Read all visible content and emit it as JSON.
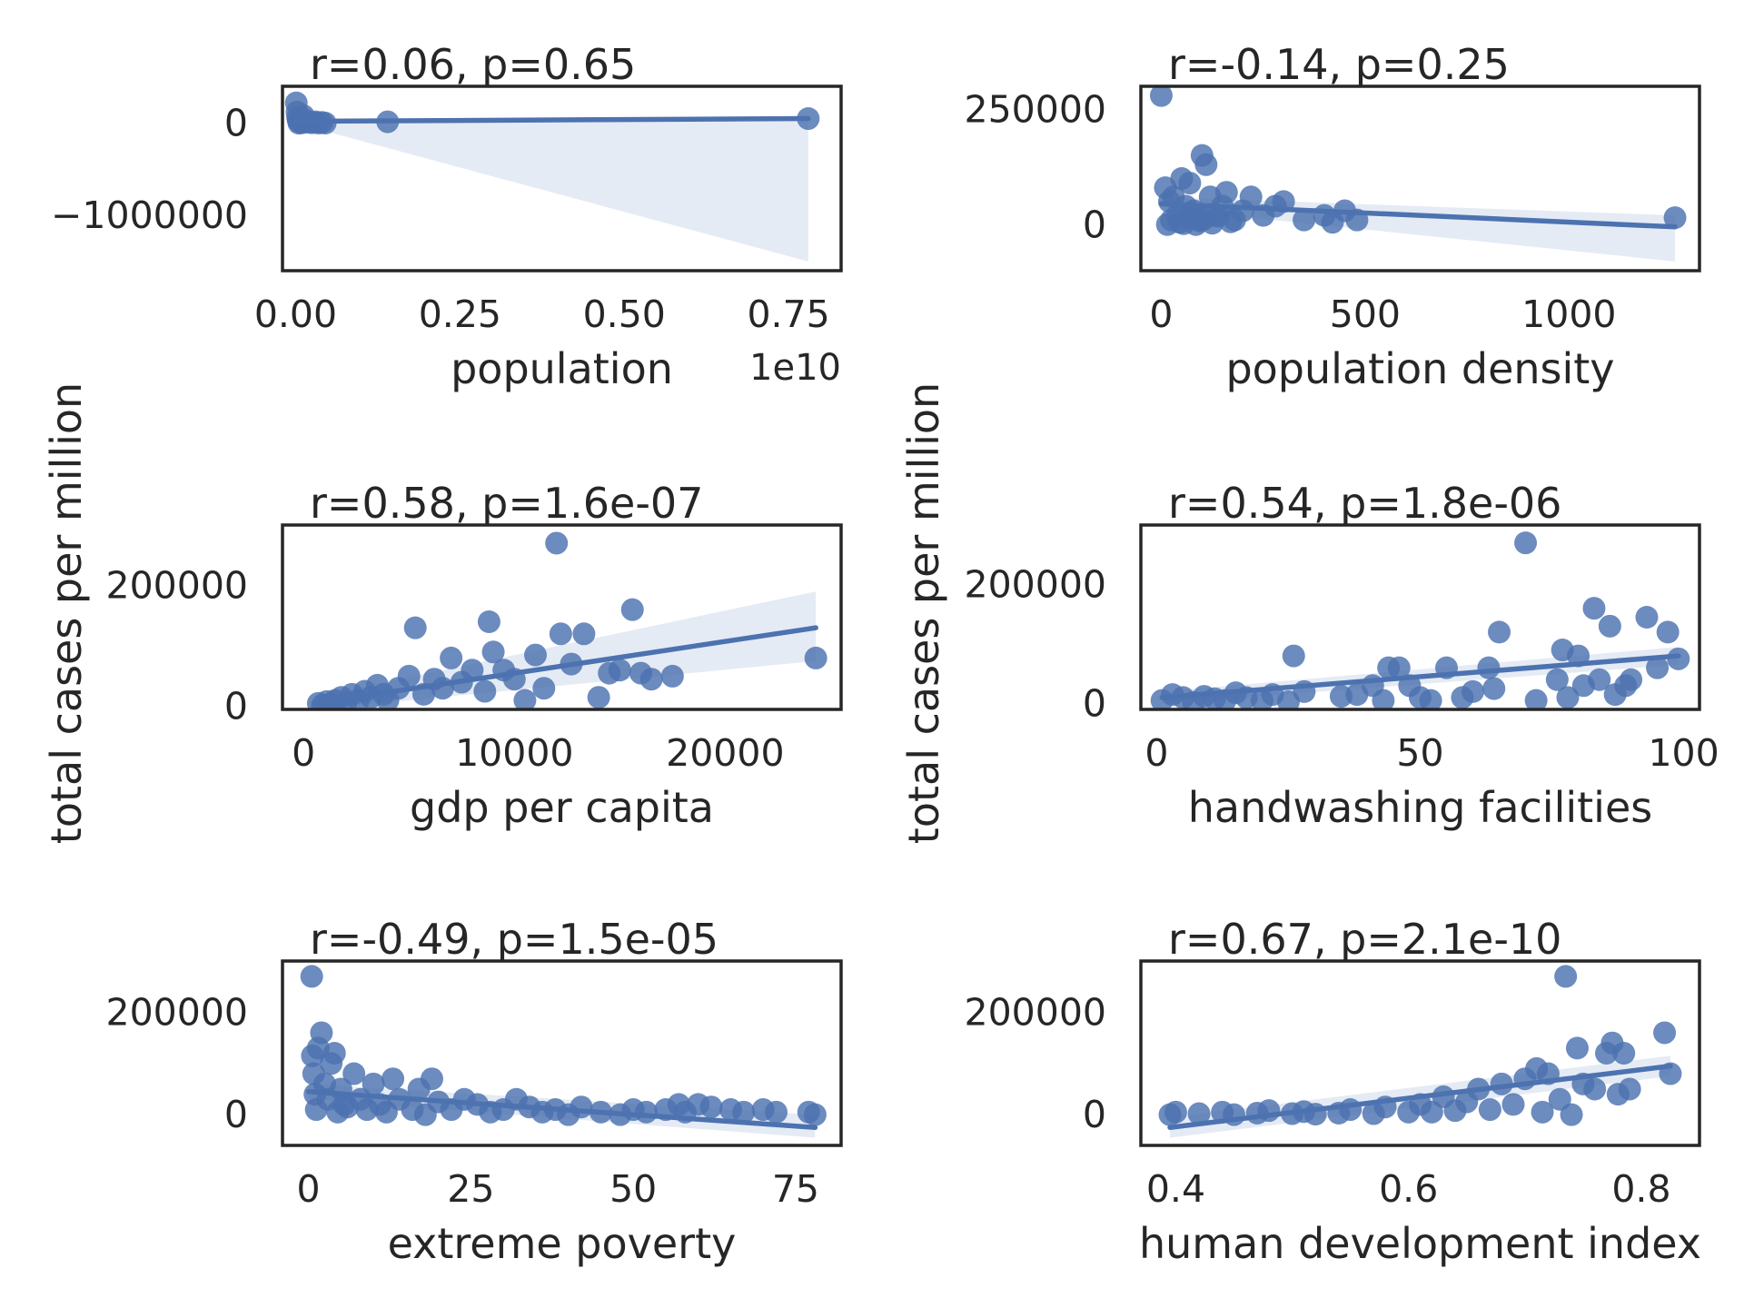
{
  "figure": {
    "ylabel": "total cases per million",
    "accent_color": "#4c72b0",
    "band_color": "#e0e7f2",
    "grid": false
  },
  "chart_data": [
    {
      "type": "scatter",
      "xlabel": "population",
      "x_offset_label": "1e10",
      "annotation": "r=0.06, p=0.65",
      "xlim": [
        -0.02,
        0.83
      ],
      "ylim": [
        -1600000,
        400000
      ],
      "xticks": [
        0.0,
        0.25,
        0.5,
        0.75
      ],
      "xtick_labels": [
        "0.00",
        "0.25",
        "0.50",
        "0.75"
      ],
      "yticks": [
        0,
        -1000000
      ],
      "ytick_labels": [
        "0",
        "−1000000"
      ],
      "points": [
        [
          0.001,
          220000
        ],
        [
          0.002,
          120000
        ],
        [
          0.003,
          60000
        ],
        [
          0.004,
          30000
        ],
        [
          0.005,
          0
        ],
        [
          0.006,
          50000
        ],
        [
          0.007,
          10000
        ],
        [
          0.008,
          20000
        ],
        [
          0.01,
          5000
        ],
        [
          0.012,
          80000
        ],
        [
          0.015,
          30000
        ],
        [
          0.02,
          10000
        ],
        [
          0.025,
          5000
        ],
        [
          0.03,
          15000
        ],
        [
          0.035,
          2000
        ],
        [
          0.04,
          8000
        ],
        [
          0.045,
          1000
        ],
        [
          0.14,
          15000
        ],
        [
          0.78,
          50000
        ]
      ],
      "fit": [
        [
          0.0,
          20000
        ],
        [
          0.78,
          50000
        ]
      ],
      "band_upper": [
        [
          0.0,
          25000
        ],
        [
          0.78,
          55000
        ]
      ],
      "band_lower": [
        [
          0.0,
          0
        ],
        [
          0.78,
          -1500000
        ]
      ]
    },
    {
      "type": "scatter",
      "xlabel": "population density",
      "annotation": "r=-0.14, p=0.25",
      "xlim": [
        -50,
        1320
      ],
      "ylim": [
        -100000,
        300000
      ],
      "xticks": [
        0,
        500,
        1000
      ],
      "xtick_labels": [
        "0",
        "500",
        "1000"
      ],
      "yticks": [
        250000,
        0
      ],
      "ytick_labels": [
        "250000",
        "0"
      ],
      "points": [
        [
          0,
          280000
        ],
        [
          20,
          50000
        ],
        [
          10,
          80000
        ],
        [
          30,
          60000
        ],
        [
          40,
          20000
        ],
        [
          50,
          100000
        ],
        [
          60,
          40000
        ],
        [
          70,
          90000
        ],
        [
          80,
          30000
        ],
        [
          90,
          10000
        ],
        [
          100,
          150000
        ],
        [
          110,
          130000
        ],
        [
          120,
          60000
        ],
        [
          130,
          20000
        ],
        [
          150,
          40000
        ],
        [
          160,
          70000
        ],
        [
          180,
          10000
        ],
        [
          200,
          30000
        ],
        [
          220,
          60000
        ],
        [
          250,
          20000
        ],
        [
          280,
          40000
        ],
        [
          300,
          50000
        ],
        [
          350,
          10000
        ],
        [
          400,
          20000
        ],
        [
          420,
          5000
        ],
        [
          450,
          30000
        ],
        [
          480,
          10000
        ],
        [
          1260,
          15000
        ],
        [
          15,
          0
        ],
        [
          25,
          10000
        ],
        [
          45,
          5000
        ],
        [
          55,
          2000
        ],
        [
          65,
          15000
        ],
        [
          75,
          25000
        ],
        [
          85,
          0
        ],
        [
          95,
          8000
        ],
        [
          105,
          12000
        ],
        [
          125,
          3000
        ],
        [
          140,
          18000
        ],
        [
          170,
          6000
        ]
      ],
      "fit": [
        [
          0,
          45000
        ],
        [
          1260,
          -5000
        ]
      ],
      "band_upper": [
        [
          0,
          60000
        ],
        [
          1260,
          20000
        ]
      ],
      "band_lower": [
        [
          0,
          35000
        ],
        [
          1260,
          -80000
        ]
      ]
    },
    {
      "type": "scatter",
      "xlabel": "gdp per capita",
      "annotation": "r=0.58, p=1.6e-07",
      "xlim": [
        -1000,
        25500
      ],
      "ylim": [
        -5000,
        300000
      ],
      "xticks": [
        0,
        10000,
        20000
      ],
      "xtick_labels": [
        "0",
        "10000",
        "20000"
      ],
      "yticks": [
        200000,
        0
      ],
      "ytick_labels": [
        "200000",
        "0"
      ],
      "points": [
        [
          700,
          5000
        ],
        [
          900,
          2000
        ],
        [
          1100,
          8000
        ],
        [
          1300,
          3000
        ],
        [
          1500,
          10000
        ],
        [
          1800,
          15000
        ],
        [
          2000,
          5000
        ],
        [
          2300,
          20000
        ],
        [
          2600,
          10000
        ],
        [
          2900,
          25000
        ],
        [
          3200,
          15000
        ],
        [
          3500,
          35000
        ],
        [
          3800,
          20000
        ],
        [
          4000,
          10000
        ],
        [
          4500,
          30000
        ],
        [
          5000,
          50000
        ],
        [
          5300,
          130000
        ],
        [
          5700,
          20000
        ],
        [
          6200,
          45000
        ],
        [
          6600,
          30000
        ],
        [
          7000,
          80000
        ],
        [
          7500,
          40000
        ],
        [
          8000,
          60000
        ],
        [
          8600,
          25000
        ],
        [
          8800,
          140000
        ],
        [
          9000,
          90000
        ],
        [
          9500,
          60000
        ],
        [
          10000,
          45000
        ],
        [
          10500,
          10000
        ],
        [
          11000,
          85000
        ],
        [
          11400,
          30000
        ],
        [
          12000,
          270000
        ],
        [
          12200,
          120000
        ],
        [
          12700,
          70000
        ],
        [
          13300,
          120000
        ],
        [
          14000,
          15000
        ],
        [
          14500,
          55000
        ],
        [
          15000,
          60000
        ],
        [
          15600,
          160000
        ],
        [
          16000,
          55000
        ],
        [
          16500,
          45000
        ],
        [
          17500,
          50000
        ],
        [
          24300,
          80000
        ]
      ],
      "fit": [
        [
          500,
          5000
        ],
        [
          24300,
          130000
        ]
      ],
      "band_upper": [
        [
          500,
          15000
        ],
        [
          24300,
          190000
        ]
      ],
      "band_lower": [
        [
          500,
          -5000
        ],
        [
          24300,
          75000
        ]
      ]
    },
    {
      "type": "scatter",
      "xlabel": "handwashing facilities",
      "annotation": "r=0.54, p=1.8e-06",
      "xlim": [
        -3,
        103
      ],
      "ylim": [
        -10000,
        300000
      ],
      "xticks": [
        0,
        50,
        100
      ],
      "xtick_labels": [
        "0",
        "50",
        "100"
      ],
      "yticks": [
        200000,
        0
      ],
      "ytick_labels": [
        "200000",
        "0"
      ],
      "points": [
        [
          1,
          5000
        ],
        [
          3,
          15000
        ],
        [
          5,
          10000
        ],
        [
          7,
          2000
        ],
        [
          9,
          12000
        ],
        [
          11,
          8000
        ],
        [
          13,
          5000
        ],
        [
          15,
          18000
        ],
        [
          17,
          10000
        ],
        [
          20,
          5000
        ],
        [
          22,
          15000
        ],
        [
          25,
          3000
        ],
        [
          26,
          80000
        ],
        [
          28,
          20000
        ],
        [
          35,
          12000
        ],
        [
          38,
          15000
        ],
        [
          41,
          30000
        ],
        [
          43,
          5000
        ],
        [
          44,
          60000
        ],
        [
          46,
          60000
        ],
        [
          48,
          30000
        ],
        [
          50,
          10000
        ],
        [
          52,
          5000
        ],
        [
          55,
          60000
        ],
        [
          58,
          10000
        ],
        [
          60,
          20000
        ],
        [
          63,
          60000
        ],
        [
          64,
          25000
        ],
        [
          65,
          120000
        ],
        [
          70,
          270000
        ],
        [
          72,
          5000
        ],
        [
          76,
          40000
        ],
        [
          77,
          90000
        ],
        [
          78,
          10000
        ],
        [
          80,
          80000
        ],
        [
          81,
          30000
        ],
        [
          83,
          160000
        ],
        [
          84,
          40000
        ],
        [
          86,
          130000
        ],
        [
          87,
          15000
        ],
        [
          89,
          30000
        ],
        [
          90,
          40000
        ],
        [
          93,
          145000
        ],
        [
          95,
          60000
        ],
        [
          97,
          120000
        ],
        [
          99,
          75000
        ]
      ],
      "fit": [
        [
          1,
          10000
        ],
        [
          99,
          80000
        ]
      ],
      "band_upper": [
        [
          1,
          20000
        ],
        [
          99,
          95000
        ]
      ],
      "band_lower": [
        [
          1,
          0
        ],
        [
          99,
          65000
        ]
      ]
    },
    {
      "type": "scatter",
      "xlabel": "extreme poverty",
      "annotation": "r=-0.49, p=1.5e-05",
      "xlim": [
        -4,
        82
      ],
      "ylim": [
        -60000,
        300000
      ],
      "xticks": [
        0,
        25,
        50,
        75
      ],
      "xtick_labels": [
        "0",
        "25",
        "50",
        "75"
      ],
      "yticks": [
        200000,
        0
      ],
      "ytick_labels": [
        "200000",
        "0"
      ],
      "points": [
        [
          0.5,
          270000
        ],
        [
          0.6,
          115000
        ],
        [
          0.8,
          80000
        ],
        [
          1,
          40000
        ],
        [
          1.2,
          10000
        ],
        [
          1.5,
          130000
        ],
        [
          2,
          160000
        ],
        [
          2.5,
          60000
        ],
        [
          3,
          30000
        ],
        [
          3.5,
          100000
        ],
        [
          4,
          120000
        ],
        [
          4.5,
          5000
        ],
        [
          5,
          50000
        ],
        [
          5.5,
          20000
        ],
        [
          6,
          15000
        ],
        [
          7,
          80000
        ],
        [
          8,
          30000
        ],
        [
          9,
          10000
        ],
        [
          10,
          60000
        ],
        [
          11,
          20000
        ],
        [
          12,
          5000
        ],
        [
          13,
          70000
        ],
        [
          14,
          30000
        ],
        [
          16,
          10000
        ],
        [
          17,
          50000
        ],
        [
          18,
          0
        ],
        [
          19,
          70000
        ],
        [
          20,
          25000
        ],
        [
          22,
          10000
        ],
        [
          24,
          30000
        ],
        [
          26,
          20000
        ],
        [
          28,
          5000
        ],
        [
          30,
          10000
        ],
        [
          32,
          30000
        ],
        [
          34,
          15000
        ],
        [
          36,
          5000
        ],
        [
          38,
          10000
        ],
        [
          40,
          0
        ],
        [
          42,
          15000
        ],
        [
          45,
          5000
        ],
        [
          48,
          0
        ],
        [
          50,
          10000
        ],
        [
          52,
          5000
        ],
        [
          55,
          10000
        ],
        [
          57,
          20000
        ],
        [
          58,
          5000
        ],
        [
          60,
          20000
        ],
        [
          62,
          15000
        ],
        [
          65,
          10000
        ],
        [
          67,
          5000
        ],
        [
          70,
          10000
        ],
        [
          72,
          5000
        ],
        [
          77,
          5000
        ],
        [
          78,
          0
        ]
      ],
      "fit": [
        [
          0,
          45000
        ],
        [
          78,
          -25000
        ]
      ],
      "band_upper": [
        [
          0,
          60000
        ],
        [
          78,
          0
        ]
      ],
      "band_lower": [
        [
          0,
          30000
        ],
        [
          78,
          -45000
        ]
      ]
    },
    {
      "type": "scatter",
      "xlabel": "human development index",
      "annotation": "r=0.67, p=2.1e-10",
      "xlim": [
        0.37,
        0.85
      ],
      "ylim": [
        -60000,
        300000
      ],
      "xticks": [
        0.4,
        0.6,
        0.8
      ],
      "xtick_labels": [
        "0.4",
        "0.6",
        "0.8"
      ],
      "yticks": [
        200000,
        0
      ],
      "ytick_labels": [
        "200000",
        "0"
      ],
      "points": [
        [
          0.395,
          0
        ],
        [
          0.4,
          5000
        ],
        [
          0.42,
          2000
        ],
        [
          0.44,
          5000
        ],
        [
          0.45,
          0
        ],
        [
          0.47,
          3000
        ],
        [
          0.48,
          8000
        ],
        [
          0.5,
          2000
        ],
        [
          0.51,
          6000
        ],
        [
          0.52,
          1000
        ],
        [
          0.54,
          3000
        ],
        [
          0.55,
          10000
        ],
        [
          0.57,
          2000
        ],
        [
          0.58,
          15000
        ],
        [
          0.6,
          5000
        ],
        [
          0.61,
          20000
        ],
        [
          0.62,
          5000
        ],
        [
          0.63,
          35000
        ],
        [
          0.64,
          8000
        ],
        [
          0.65,
          25000
        ],
        [
          0.66,
          50000
        ],
        [
          0.67,
          10000
        ],
        [
          0.68,
          60000
        ],
        [
          0.69,
          20000
        ],
        [
          0.7,
          70000
        ],
        [
          0.71,
          90000
        ],
        [
          0.715,
          5000
        ],
        [
          0.72,
          80000
        ],
        [
          0.73,
          30000
        ],
        [
          0.735,
          270000
        ],
        [
          0.74,
          0
        ],
        [
          0.745,
          130000
        ],
        [
          0.75,
          60000
        ],
        [
          0.76,
          50000
        ],
        [
          0.77,
          120000
        ],
        [
          0.775,
          140000
        ],
        [
          0.78,
          40000
        ],
        [
          0.785,
          120000
        ],
        [
          0.79,
          50000
        ],
        [
          0.82,
          160000
        ],
        [
          0.825,
          80000
        ]
      ],
      "fit": [
        [
          0.395,
          -25000
        ],
        [
          0.825,
          95000
        ]
      ],
      "band_upper": [
        [
          0.395,
          -5000
        ],
        [
          0.825,
          115000
        ]
      ],
      "band_lower": [
        [
          0.395,
          -45000
        ],
        [
          0.825,
          75000
        ]
      ]
    }
  ]
}
